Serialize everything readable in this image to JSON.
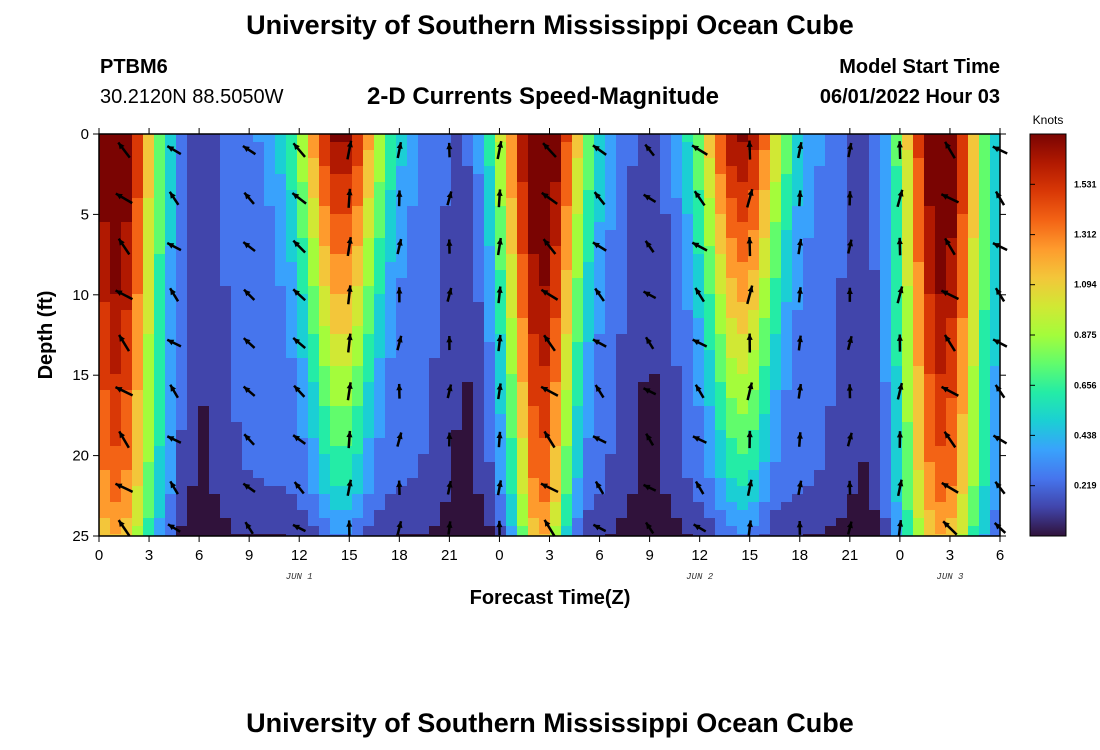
{
  "header": {
    "title": "University of Southern Mississippi Ocean Cube",
    "station": "PTBM6",
    "coords": "30.2120N  88.5050W",
    "subtitle": "2-D Currents Speed-Magnitude",
    "model_start_label": "Model Start Time",
    "model_start_value": "06/01/2022 Hour 03"
  },
  "footer": {
    "title": "University of Southern Mississippi Ocean Cube"
  },
  "chart_data": {
    "type": "heatmap",
    "title": "2-D Currents Speed-Magnitude",
    "xlabel": "Forecast Time(Z)",
    "ylabel": "Depth (ft)",
    "x_tick_labels": [
      "0",
      "3",
      "6",
      "9",
      "12",
      "15",
      "18",
      "21",
      "0",
      "3",
      "6",
      "9",
      "12",
      "15",
      "18",
      "21",
      "0",
      "3",
      "6"
    ],
    "x_range_hours": [
      0,
      54
    ],
    "day_labels": [
      {
        "text": "JUN 1",
        "hour": 12
      },
      {
        "text": "JUN 2",
        "hour": 36
      },
      {
        "text": "JUN 3",
        "hour": 51
      }
    ],
    "y_tick_labels": [
      "0",
      "5",
      "10",
      "15",
      "20",
      "25"
    ],
    "y_range_ft": [
      0,
      25
    ],
    "colorbar": {
      "title": "Knots",
      "range": [
        0,
        1.75
      ],
      "tick_labels": [
        "0.219",
        "0.438",
        "0.656",
        "0.875",
        "1.094",
        "1.312",
        "1.531"
      ],
      "tick_values": [
        0.219,
        0.438,
        0.656,
        0.875,
        1.094,
        1.312,
        1.531
      ],
      "colors": [
        "#30123b",
        "#4145ab",
        "#4675ed",
        "#39a2fc",
        "#1bcfd4",
        "#24eca6",
        "#61fc6c",
        "#a4fc3b",
        "#d1e834",
        "#f3c63a",
        "#fe9b2d",
        "#f36315",
        "#d93806",
        "#b11901",
        "#7a0402"
      ]
    },
    "vector_hours": [
      1.5,
      4.5,
      9,
      12,
      15,
      18,
      21,
      24,
      27,
      30,
      33,
      36,
      39,
      42,
      45,
      48,
      51,
      54
    ],
    "vector_depths_ft": [
      1,
      4,
      7,
      10,
      13,
      16,
      19,
      22,
      24.5
    ],
    "peak_speed_hours": [
      1,
      14.5,
      26.5,
      38.5,
      50.5
    ],
    "low_speed_hours": [
      6,
      22,
      33,
      46
    ]
  }
}
